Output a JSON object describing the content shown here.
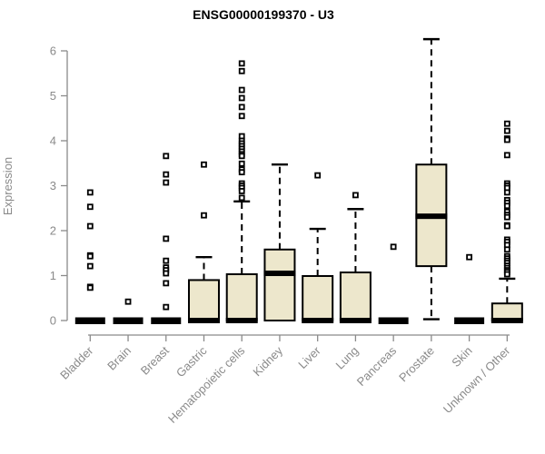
{
  "chart_data": {
    "type": "boxplot",
    "title": "ENSG00000199370 - U3",
    "ylabel": "Expression",
    "xlabel": "",
    "ylim": [
      0,
      6.4
    ],
    "yticks": [
      0,
      1,
      2,
      3,
      4,
      5,
      6
    ],
    "grid": false,
    "legend": "none",
    "categories": [
      "Bladder",
      "Brain",
      "Breast",
      "Gastric",
      "Hematopoietic cells",
      "Kidney",
      "Liver",
      "Lung",
      "Pancreas",
      "Prostate",
      "Skin",
      "Unknown / Other"
    ],
    "series": [
      {
        "label": "Bladder",
        "q1": 0,
        "median": 0,
        "q3": 0,
        "whisker_low": 0,
        "whisker_high": 0,
        "outliers": [
          2.85,
          2.53,
          2.1,
          1.45,
          1.43,
          1.21,
          0.75,
          0.73
        ]
      },
      {
        "label": "Brain",
        "q1": 0,
        "median": 0,
        "q3": 0,
        "whisker_low": 0,
        "whisker_high": 0,
        "outliers": [
          0.42
        ]
      },
      {
        "label": "Breast",
        "q1": 0,
        "median": 0,
        "q3": 0,
        "whisker_low": 0,
        "whisker_high": 0,
        "outliers": [
          3.66,
          3.25,
          3.07,
          1.82,
          1.33,
          1.18,
          1.12,
          1.05,
          0.83,
          0.3
        ]
      },
      {
        "label": "Gastric",
        "q1": 0,
        "median": 0,
        "q3": 0.9,
        "whisker_low": 0,
        "whisker_high": 1.41,
        "outliers": [
          3.47,
          2.34
        ]
      },
      {
        "label": "Hematopoietic cells",
        "q1": 0,
        "median": 0,
        "q3": 1.03,
        "whisker_low": 0,
        "whisker_high": 2.65,
        "outliers": [
          5.72,
          5.55,
          5.13,
          4.95,
          4.75,
          4.55,
          4.1,
          4.0,
          3.94,
          3.88,
          3.82,
          3.76,
          3.7,
          3.66,
          3.49,
          3.36,
          3.3,
          3.05,
          3.0,
          2.95,
          2.88,
          2.73
        ]
      },
      {
        "label": "Kidney",
        "q1": 0,
        "median": 1.05,
        "q3": 1.58,
        "whisker_low": 0,
        "whisker_high": 3.47,
        "outliers": []
      },
      {
        "label": "Liver",
        "q1": 0,
        "median": 0,
        "q3": 0.99,
        "whisker_low": 0,
        "whisker_high": 2.04,
        "outliers": [
          3.23
        ]
      },
      {
        "label": "Lung",
        "q1": 0,
        "median": 0,
        "q3": 1.07,
        "whisker_low": 0,
        "whisker_high": 2.48,
        "outliers": [
          2.79
        ]
      },
      {
        "label": "Pancreas",
        "q1": 0,
        "median": 0,
        "q3": 0,
        "whisker_low": 0,
        "whisker_high": 0,
        "outliers": [
          1.64
        ]
      },
      {
        "label": "Prostate",
        "q1": 1.21,
        "median": 2.32,
        "q3": 3.47,
        "whisker_low": 0.03,
        "whisker_high": 6.26,
        "outliers": []
      },
      {
        "label": "Skin",
        "q1": 0,
        "median": 0,
        "q3": 0,
        "whisker_low": 0,
        "whisker_high": 0,
        "outliers": [
          1.41
        ]
      },
      {
        "label": "Unknown / Other",
        "q1": 0,
        "median": 0,
        "q3": 0.38,
        "whisker_low": 0,
        "whisker_high": 0.93,
        "outliers": [
          4.38,
          4.22,
          4.05,
          4.02,
          3.68,
          3.05,
          3.0,
          2.95,
          2.85,
          2.68,
          2.62,
          2.55,
          2.42,
          2.35,
          2.3,
          2.12,
          2.1,
          1.8,
          1.75,
          1.68,
          1.58,
          1.43,
          1.38,
          1.33,
          1.28,
          1.22,
          1.17,
          1.12,
          1.08,
          1.03
        ]
      }
    ],
    "colors": {
      "box_fill": "#EDE7CC",
      "box_stroke": "#000000",
      "median": "#000000",
      "whisker": "#000000",
      "axis": "#8a8a8a",
      "tick_label": "#8a8a8a",
      "title": "#000000",
      "background": "#ffffff"
    }
  }
}
